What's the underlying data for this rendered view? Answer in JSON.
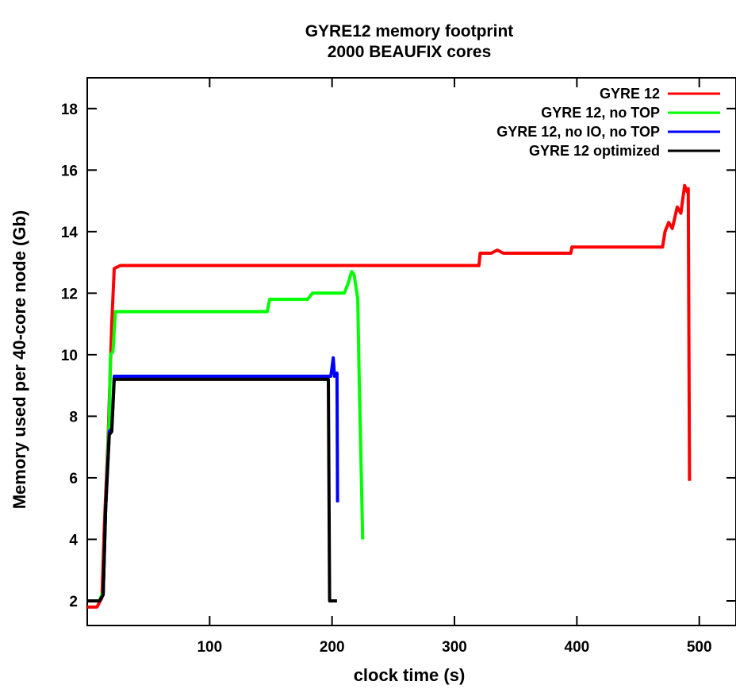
{
  "chart_data": {
    "type": "line",
    "title": "GYRE12 memory footprint",
    "subtitle": "2000 BEAUFIX cores",
    "xlabel": "clock time (s)",
    "ylabel": "Memory used per 40-core node (Gb)",
    "xlim": [
      0,
      530
    ],
    "ylim": [
      1.2,
      19
    ],
    "xticks": [
      100,
      200,
      300,
      400,
      500
    ],
    "yticks": [
      2,
      4,
      6,
      8,
      10,
      12,
      14,
      16,
      18
    ],
    "grid": false,
    "legend_position": "top-right",
    "series": [
      {
        "name": "GYRE 12",
        "color": "#ff0000",
        "points": [
          [
            0,
            1.8
          ],
          [
            8,
            1.8
          ],
          [
            12,
            2.1
          ],
          [
            14,
            4.5
          ],
          [
            17,
            7.2
          ],
          [
            20,
            11
          ],
          [
            22,
            12.8
          ],
          [
            27,
            12.9
          ],
          [
            150,
            12.9
          ],
          [
            300,
            12.9
          ],
          [
            320,
            12.9
          ],
          [
            321,
            13.3
          ],
          [
            330,
            13.3
          ],
          [
            335,
            13.4
          ],
          [
            340,
            13.3
          ],
          [
            395,
            13.3
          ],
          [
            396,
            13.5
          ],
          [
            470,
            13.5
          ],
          [
            472,
            14.0
          ],
          [
            475,
            14.3
          ],
          [
            478,
            14.1
          ],
          [
            482,
            14.8
          ],
          [
            485,
            14.6
          ],
          [
            488,
            15.5
          ],
          [
            490,
            15.3
          ],
          [
            491,
            15.4
          ],
          [
            492,
            5.9
          ]
        ]
      },
      {
        "name": "GYRE 12, no TOP",
        "color": "#00ff00",
        "points": [
          [
            0,
            2.0
          ],
          [
            10,
            2.0
          ],
          [
            13,
            2.3
          ],
          [
            15,
            5.0
          ],
          [
            18,
            8.0
          ],
          [
            19,
            10.0
          ],
          [
            21,
            10.1
          ],
          [
            23,
            11.4
          ],
          [
            30,
            11.4
          ],
          [
            147,
            11.4
          ],
          [
            149,
            11.8
          ],
          [
            180,
            11.8
          ],
          [
            184,
            12.0
          ],
          [
            210,
            12.0
          ],
          [
            213,
            12.3
          ],
          [
            216,
            12.7
          ],
          [
            218,
            12.6
          ],
          [
            221,
            11.8
          ],
          [
            222,
            9.6
          ],
          [
            225,
            4.0
          ]
        ]
      },
      {
        "name": "GYRE 12, no IO, no TOP",
        "color": "#0000ff",
        "points": [
          [
            0,
            2.0
          ],
          [
            10,
            2.0
          ],
          [
            13,
            2.2
          ],
          [
            15,
            5.0
          ],
          [
            18,
            7.5
          ],
          [
            20,
            7.6
          ],
          [
            22,
            9.3
          ],
          [
            30,
            9.3
          ],
          [
            199,
            9.3
          ],
          [
            201,
            9.9
          ],
          [
            202,
            9.3
          ],
          [
            204,
            9.4
          ],
          [
            204.5,
            5.2
          ]
        ]
      },
      {
        "name": "GYRE 12 optimized",
        "color": "#000000",
        "points": [
          [
            0,
            2.0
          ],
          [
            10,
            2.0
          ],
          [
            13,
            2.2
          ],
          [
            15,
            5.0
          ],
          [
            18,
            7.4
          ],
          [
            20,
            7.5
          ],
          [
            22,
            9.2
          ],
          [
            30,
            9.2
          ],
          [
            100,
            9.2
          ],
          [
            197,
            9.2
          ],
          [
            198,
            2.0
          ],
          [
            204,
            2.0
          ]
        ]
      }
    ]
  }
}
